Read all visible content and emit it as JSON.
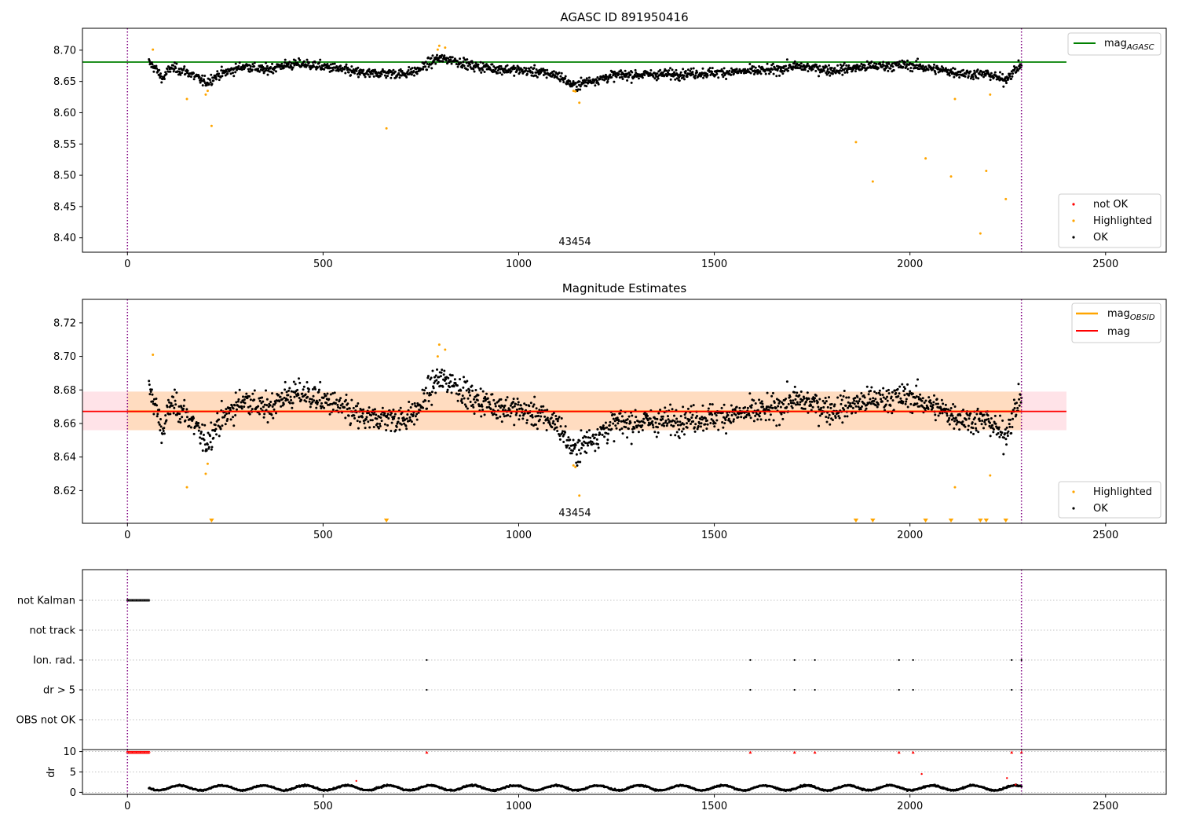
{
  "figure": {
    "x_ticks": [
      0,
      500,
      1000,
      1500,
      2000,
      2500
    ],
    "x_range": [
      -115,
      2655
    ],
    "vertical_markers": [
      0,
      2285
    ],
    "colors": {
      "ok": "#000000",
      "highlighted": "#ffa500",
      "not_ok": "#ff0000",
      "agasc_line": "#008000",
      "obsid_line": "#ffa500",
      "mag_line": "#ff0000",
      "band_fill": "#ffc0cb",
      "band_fill_overlap": "#ffdab9",
      "marker_line": "#800080",
      "grid": "#b0b0b0"
    }
  },
  "chart_data": [
    {
      "type": "scatter",
      "title": "AGASC ID 891950416",
      "annotation": "43454",
      "ylim": [
        8.377,
        8.735
      ],
      "y_ticks": [
        "8.40",
        "8.45",
        "8.50",
        "8.55",
        "8.60",
        "8.65",
        "8.70"
      ],
      "hlines": [
        {
          "name": "mag_AGASC",
          "y": 8.681,
          "x_range": [
            -115,
            2400
          ]
        }
      ],
      "legend_upper": {
        "items": [
          {
            "label": "mag",
            "sub": "AGASC"
          }
        ]
      },
      "legend_lower": {
        "items": [
          {
            "label": "not OK"
          },
          {
            "label": "Highlighted"
          },
          {
            "label": "OK"
          }
        ]
      },
      "ok_series": {
        "name": "OK",
        "x_range": [
          55,
          2285
        ],
        "count": 1800,
        "note": "dense time series; y values follow smooth trend with ~0.007 scatter",
        "trend": [
          [
            55,
            8.68
          ],
          [
            70,
            8.672
          ],
          [
            90,
            8.654
          ],
          [
            110,
            8.672
          ],
          [
            150,
            8.666
          ],
          [
            200,
            8.648
          ],
          [
            230,
            8.66
          ],
          [
            300,
            8.675
          ],
          [
            350,
            8.668
          ],
          [
            400,
            8.676
          ],
          [
            450,
            8.678
          ],
          [
            520,
            8.672
          ],
          [
            580,
            8.665
          ],
          [
            620,
            8.662
          ],
          [
            650,
            8.664
          ],
          [
            700,
            8.662
          ],
          [
            740,
            8.667
          ],
          [
            790,
            8.686
          ],
          [
            830,
            8.685
          ],
          [
            880,
            8.675
          ],
          [
            950,
            8.67
          ],
          [
            1000,
            8.668
          ],
          [
            1050,
            8.665
          ],
          [
            1100,
            8.66
          ],
          [
            1140,
            8.643
          ],
          [
            1190,
            8.652
          ],
          [
            1250,
            8.66
          ],
          [
            1400,
            8.662
          ],
          [
            1500,
            8.664
          ],
          [
            1650,
            8.668
          ],
          [
            1700,
            8.674
          ],
          [
            1750,
            8.672
          ],
          [
            1800,
            8.668
          ],
          [
            1900,
            8.674
          ],
          [
            2000,
            8.676
          ],
          [
            2080,
            8.668
          ],
          [
            2150,
            8.662
          ],
          [
            2200,
            8.662
          ],
          [
            2240,
            8.652
          ],
          [
            2285,
            8.677
          ]
        ]
      },
      "highlighted_points": [
        [
          65,
          8.701
        ],
        [
          152,
          8.622
        ],
        [
          200,
          8.629
        ],
        [
          205,
          8.635
        ],
        [
          215,
          8.579
        ],
        [
          662,
          8.575
        ],
        [
          793,
          8.701
        ],
        [
          797,
          8.707
        ],
        [
          812,
          8.704
        ],
        [
          1140,
          8.635
        ],
        [
          1145,
          8.634
        ],
        [
          1155,
          8.616
        ],
        [
          1862,
          8.553
        ],
        [
          1905,
          8.49
        ],
        [
          2040,
          8.527
        ],
        [
          2105,
          8.498
        ],
        [
          2115,
          8.622
        ],
        [
          2180,
          8.407
        ],
        [
          2195,
          8.507
        ],
        [
          2205,
          8.629
        ],
        [
          2245,
          8.462
        ]
      ]
    },
    {
      "type": "scatter",
      "title": "Magnitude Estimates",
      "annotation": "43454",
      "ylim": [
        8.6005,
        8.734
      ],
      "y_ticks": [
        "8.62",
        "8.64",
        "8.66",
        "8.68",
        "8.70",
        "8.72"
      ],
      "hlines": [
        {
          "name": "mag_OBSID",
          "y": 8.6672,
          "x_range": [
            0,
            2285
          ]
        },
        {
          "name": "mag",
          "y": 8.6672,
          "x_range": [
            -115,
            2400
          ]
        }
      ],
      "bands": [
        {
          "name": "mag band",
          "y_range": [
            8.656,
            8.679
          ],
          "x_range": [
            -115,
            2400
          ]
        },
        {
          "name": "mag_OBSID band",
          "y_range": [
            8.656,
            8.679
          ],
          "x_range": [
            0,
            2285
          ]
        }
      ],
      "legend_upper": {
        "items": [
          {
            "label": "mag",
            "sub": "OBSID"
          },
          {
            "label": "mag",
            "sub": ""
          }
        ]
      },
      "legend_lower": {
        "items": [
          {
            "label": "Highlighted"
          },
          {
            "label": "OK"
          }
        ]
      },
      "ok_series": {
        "name": "OK",
        "same_as_panel": 0,
        "scatter_scale": 1.0
      },
      "highlighted_points": [
        [
          65,
          8.701
        ],
        [
          152,
          8.622
        ],
        [
          200,
          8.63
        ],
        [
          205,
          8.636
        ],
        [
          793,
          8.7
        ],
        [
          797,
          8.707
        ],
        [
          812,
          8.704
        ],
        [
          1140,
          8.635
        ],
        [
          1145,
          8.634
        ],
        [
          1155,
          8.617
        ],
        [
          2115,
          8.622
        ],
        [
          2205,
          8.629
        ]
      ],
      "below_range_markers_x": [
        215,
        662,
        1862,
        1905,
        2040,
        2105,
        2180,
        2195,
        2245
      ]
    },
    {
      "type": "scatter",
      "title": "",
      "y_categories": [
        "not Kalman",
        "not track",
        "Ion. rad.",
        "dr > 5",
        "OBS not OK"
      ],
      "events": {
        "not Kalman": [
          [
            0,
            55
          ]
        ],
        "not track": [],
        "Ion. rad.": [
          765,
          1592,
          1705,
          1757,
          1972,
          2008,
          2260,
          2285
        ],
        "dr > 5": [
          765,
          1592,
          1705,
          1757,
          1972,
          2008,
          2260,
          2285
        ],
        "OBS not OK": []
      }
    },
    {
      "type": "scatter",
      "title": "",
      "ylabel": "dr",
      "ylim": [
        -0.5,
        10.5
      ],
      "y_ticks": [
        "0",
        "5",
        "10"
      ],
      "gap_range": [
        0,
        55
      ],
      "series_range": [
        55,
        2285
      ],
      "clipped_points_x": [
        765,
        1592,
        1705,
        1757,
        1972,
        2008,
        2260,
        2285
      ],
      "scattered_high_points": [
        [
          2030,
          4.5
        ],
        [
          2248,
          3.5
        ],
        [
          585,
          2.8
        ],
        [
          2270,
          1.9
        ]
      ]
    }
  ]
}
